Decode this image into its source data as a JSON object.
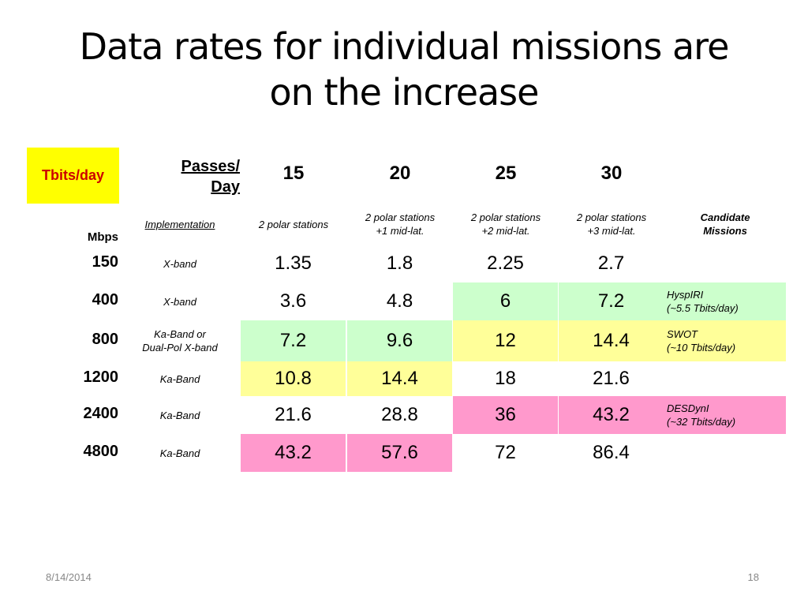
{
  "title": {
    "line1": "Data rates for individual missions are",
    "line2": "on the increase"
  },
  "corner_label": "Tbits/day",
  "passes_label": {
    "line1": "Passes/",
    "line2": "Day"
  },
  "columns": [
    "15",
    "20",
    "25",
    "30"
  ],
  "subheader": {
    "implementation": "Implementation",
    "stations": [
      [
        "2 polar stations"
      ],
      [
        "2 polar stations",
        "+1 mid-lat."
      ],
      [
        "2 polar stations",
        "+2 mid-lat."
      ],
      [
        "2 polar stations",
        "+3 mid-lat."
      ]
    ],
    "missions_line1": "Candidate",
    "missions_line2": "Missions"
  },
  "mbps_label": "Mbps",
  "rows": [
    {
      "mbps": "150",
      "impl": [
        "X-band"
      ],
      "values": [
        "1.35",
        "1.8",
        "2.25",
        "2.7"
      ],
      "mission": []
    },
    {
      "mbps": "400",
      "impl": [
        "X-band"
      ],
      "values": [
        "3.6",
        "4.8",
        "6",
        "7.2"
      ],
      "mission": [
        "HyspIRI",
        "(~5.5 Tbits/day)"
      ]
    },
    {
      "mbps": "800",
      "impl": [
        "Ka-Band or",
        "Dual-Pol X-band"
      ],
      "values": [
        "7.2",
        "9.6",
        "12",
        "14.4"
      ],
      "mission": [
        "SWOT",
        "(~10 Tbits/day)"
      ]
    },
    {
      "mbps": "1200",
      "impl": [
        "Ka-Band"
      ],
      "values": [
        "10.8",
        "14.4",
        "18",
        "21.6"
      ],
      "mission": []
    },
    {
      "mbps": "2400",
      "impl": [
        "Ka-Band"
      ],
      "values": [
        "21.6",
        "28.8",
        "36",
        "43.2"
      ],
      "mission": [
        "DESDynI",
        "(~32 Tbits/day)"
      ]
    },
    {
      "mbps": "4800",
      "impl": [
        "Ka-Band"
      ],
      "values": [
        "43.2",
        "57.6",
        "72",
        "86.4"
      ],
      "mission": []
    }
  ],
  "highlight_colors": {
    "green": "#ccffcc",
    "yellow": "#ffff99",
    "pink": "#ff99cc",
    "corner_yellow": "#ffff00",
    "corner_text": "#cc0000"
  },
  "cell_highlights": [
    [
      "",
      "",
      "",
      "",
      ""
    ],
    [
      "",
      "",
      "green",
      "green",
      "green"
    ],
    [
      "green",
      "green",
      "yellow",
      "yellow",
      "yellow"
    ],
    [
      "yellow",
      "yellow",
      "",
      "",
      ""
    ],
    [
      "",
      "",
      "pink",
      "pink",
      "pink"
    ],
    [
      "pink",
      "pink",
      "",
      "",
      ""
    ]
  ],
  "footer": {
    "date": "8/14/2014",
    "page": "18"
  }
}
